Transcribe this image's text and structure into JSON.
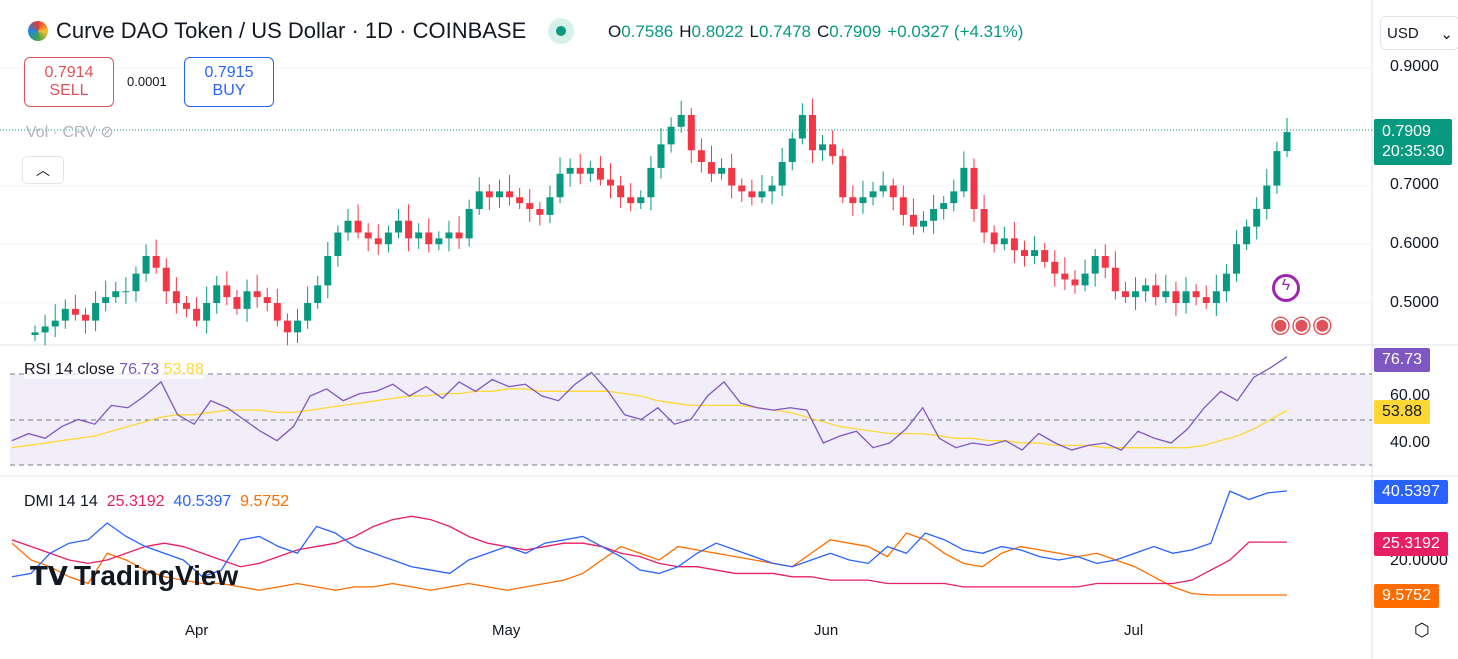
{
  "header": {
    "title": "Curve DAO Token / US Dollar · 1D · COINBASE",
    "ohlc": {
      "o_label": "O",
      "o": "0.7586",
      "h_label": "H",
      "h": "0.8022",
      "l_label": "L",
      "l": "0.7478",
      "c_label": "C",
      "c": "0.7909",
      "change": "+0.0327 (+4.31%)"
    }
  },
  "trade": {
    "sell_price": "0.7914",
    "sell_label": "SELL",
    "spread": "0.0001",
    "buy_price": "0.7915",
    "buy_label": "BUY"
  },
  "volume_legend": "Vol · CRV",
  "currency": "USD",
  "price_axis": [
    "0.9000",
    "0.7000",
    "0.6000",
    "0.5000"
  ],
  "last_price": {
    "price": "0.7909",
    "countdown": "20:35:30"
  },
  "rsi": {
    "legend": "RSI 14 close",
    "value": "76.73",
    "ma": "53.88",
    "axis": [
      "60.00",
      "40.00"
    ],
    "values": [
      41,
      44,
      42,
      47,
      50,
      48,
      56,
      55,
      60,
      66,
      52,
      48,
      58,
      55,
      50,
      45,
      41,
      47,
      60,
      63,
      58,
      61,
      62,
      65,
      60,
      64,
      59,
      66,
      62,
      67,
      64,
      65,
      60,
      58,
      65,
      70,
      62,
      52,
      50,
      55,
      48,
      50,
      60,
      66,
      57,
      55,
      54,
      55,
      54,
      40,
      43,
      45,
      38,
      40,
      46,
      55,
      42,
      38,
      40,
      39,
      41,
      37,
      44,
      40,
      37,
      39,
      40,
      37,
      45,
      42,
      40,
      46,
      55,
      62,
      58,
      68,
      72,
      76.73
    ],
    "ma_values": [
      38,
      39,
      40,
      41,
      42,
      43,
      45,
      47,
      49,
      51,
      52,
      52,
      53,
      54,
      54,
      54,
      53,
      53,
      54,
      55,
      56,
      57,
      58,
      59,
      60,
      60,
      61,
      61,
      62,
      62,
      63,
      63,
      62,
      62,
      62,
      62,
      62,
      61,
      60,
      58,
      57,
      56,
      56,
      56,
      56,
      55,
      54,
      53,
      51,
      49,
      47,
      46,
      45,
      44,
      44,
      44,
      43,
      42,
      42,
      41,
      41,
      40,
      40,
      39,
      39,
      39,
      38,
      38,
      38,
      38,
      38,
      38,
      39,
      41,
      43,
      46,
      50,
      53.88
    ]
  },
  "dmi": {
    "legend": "DMI 14 14",
    "adx": "25.3192",
    "plus_di": "40.5397",
    "minus_di": "9.5752",
    "axis": [
      "20.0000"
    ],
    "plus_values": [
      15,
      16,
      22,
      25,
      26,
      31,
      27,
      24,
      22,
      20,
      15,
      17,
      26,
      27,
      24,
      22,
      30,
      28,
      24,
      22,
      20,
      18,
      17,
      16,
      20,
      22,
      24,
      22,
      25,
      26,
      27,
      24,
      21,
      17,
      16,
      18,
      22,
      25,
      23,
      21,
      19,
      18,
      20,
      22,
      20,
      19,
      24,
      22,
      28,
      26,
      23,
      22,
      24,
      23,
      21,
      20,
      21,
      19,
      20,
      22,
      24,
      22,
      23,
      25,
      40.5,
      38,
      40,
      40.54
    ],
    "minus_values": [
      25,
      20,
      18,
      15,
      13,
      22,
      20,
      17,
      15,
      14,
      13,
      13,
      12,
      11,
      12,
      13,
      12,
      11,
      12,
      12,
      13,
      12,
      11,
      12,
      13,
      12,
      11,
      12,
      13,
      14,
      16,
      20,
      24,
      22,
      20,
      24,
      23,
      22,
      21,
      20,
      19,
      18,
      22,
      26,
      25,
      24,
      21,
      28,
      26,
      22,
      19,
      18,
      22,
      24,
      23,
      22,
      21,
      22,
      20,
      18,
      15,
      12,
      10,
      9.58,
      9.58,
      9.58,
      9.58,
      9.58
    ],
    "adx_values": [
      26,
      24,
      22,
      20,
      19,
      20,
      22,
      24,
      25,
      24,
      22,
      20,
      18,
      19,
      21,
      23,
      24,
      25,
      27,
      30,
      32,
      33,
      32,
      30,
      27,
      25,
      24,
      23,
      24,
      25,
      25,
      24,
      22,
      21,
      19,
      18,
      18,
      17,
      16,
      16,
      16,
      15,
      15,
      14,
      14,
      14,
      13,
      13,
      13,
      13,
      12,
      12,
      12,
      12,
      12,
      12,
      12,
      13,
      13,
      13,
      13,
      13,
      14,
      17,
      20,
      25.32,
      25.32,
      25.32
    ]
  },
  "time_axis": [
    "Apr",
    "May",
    "Jun",
    "Jul"
  ],
  "branding": "TradingView",
  "colors": {
    "up": "#089981",
    "down": "#f23645",
    "rsi": "#7e57c2",
    "rsi_ma": "#fdd835",
    "adx": "#e91e63",
    "plus_di": "#2962ff",
    "minus_di": "#ff6d00"
  },
  "chart_data": {
    "type": "candlestick",
    "ylim": [
      0.45,
      0.92
    ],
    "closes": [
      0.45,
      0.46,
      0.47,
      0.49,
      0.48,
      0.47,
      0.5,
      0.51,
      0.52,
      0.52,
      0.55,
      0.58,
      0.56,
      0.52,
      0.5,
      0.49,
      0.47,
      0.5,
      0.53,
      0.51,
      0.49,
      0.52,
      0.51,
      0.5,
      0.47,
      0.45,
      0.47,
      0.5,
      0.53,
      0.58,
      0.62,
      0.64,
      0.62,
      0.61,
      0.6,
      0.62,
      0.64,
      0.61,
      0.62,
      0.6,
      0.61,
      0.62,
      0.61,
      0.66,
      0.69,
      0.68,
      0.69,
      0.68,
      0.67,
      0.66,
      0.65,
      0.68,
      0.72,
      0.73,
      0.72,
      0.73,
      0.71,
      0.7,
      0.68,
      0.67,
      0.68,
      0.73,
      0.77,
      0.8,
      0.82,
      0.76,
      0.74,
      0.72,
      0.73,
      0.7,
      0.69,
      0.68,
      0.69,
      0.7,
      0.74,
      0.78,
      0.82,
      0.76,
      0.77,
      0.75,
      0.68,
      0.67,
      0.68,
      0.69,
      0.7,
      0.68,
      0.65,
      0.63,
      0.64,
      0.66,
      0.67,
      0.69,
      0.73,
      0.66,
      0.62,
      0.6,
      0.61,
      0.59,
      0.58,
      0.59,
      0.57,
      0.55,
      0.54,
      0.53,
      0.55,
      0.58,
      0.56,
      0.52,
      0.51,
      0.52,
      0.53,
      0.51,
      0.52,
      0.5,
      0.52,
      0.51,
      0.5,
      0.52,
      0.55,
      0.6,
      0.63,
      0.66,
      0.7,
      0.7586,
      0.7909
    ]
  }
}
